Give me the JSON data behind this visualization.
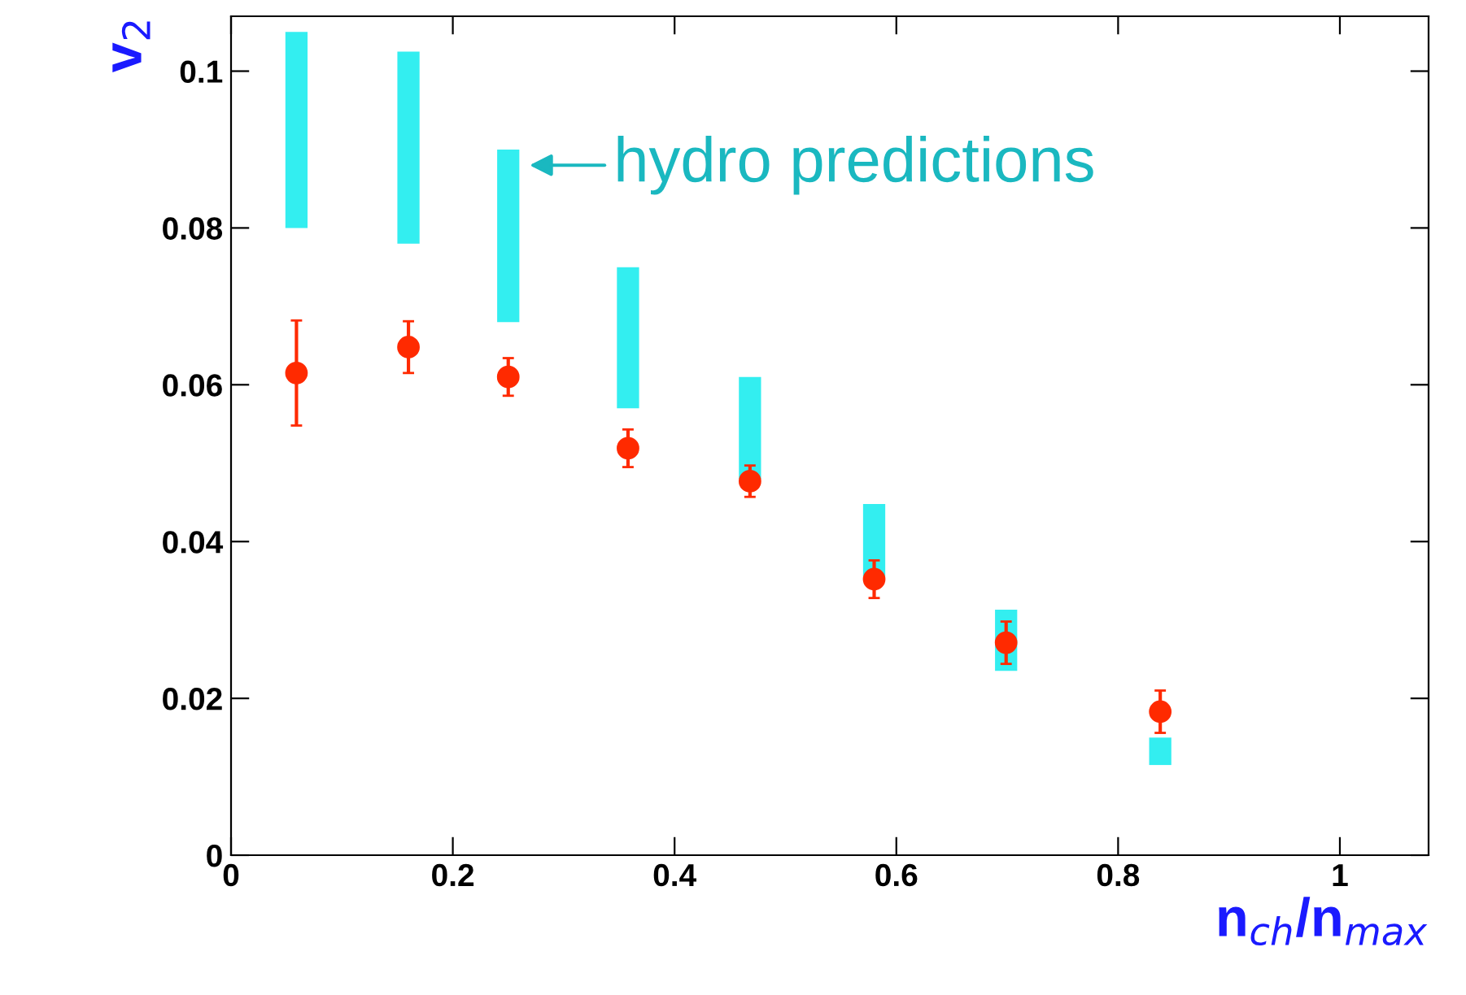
{
  "chart_data": {
    "type": "scatter",
    "xlabel": "n$_{ch}$/n$_{max}$",
    "ylabel": "v$_{2}$",
    "xlim": [
      0,
      1.08
    ],
    "ylim": [
      0,
      0.107
    ],
    "xticks": [
      0,
      0.2,
      0.4,
      0.6,
      0.8,
      1
    ],
    "yticks": [
      0,
      0.02,
      0.04,
      0.06,
      0.08,
      0.1
    ],
    "grid": false,
    "legend": false,
    "annotations": [
      {
        "text": "hydro predictions",
        "x": 0.265,
        "y": 0.088
      }
    ],
    "series": [
      {
        "type": "bar",
        "color": "#33eef0",
        "x": [
          0.059,
          0.16,
          0.25,
          0.358,
          0.468,
          0.58,
          0.699,
          0.838
        ],
        "base": [
          0.08,
          0.078,
          0.068,
          0.057,
          0.048,
          0.0355,
          0.0235,
          0.0115
        ],
        "values": [
          0.025,
          0.0245,
          0.022,
          0.018,
          0.013,
          0.0093,
          0.0078,
          0.0035
        ]
      },
      {
        "color": "#ff2a00",
        "marker": "circle",
        "x": [
          0.059,
          0.16,
          0.25,
          0.358,
          0.468,
          0.58,
          0.699,
          0.838
        ],
        "values": [
          0.0615,
          0.0648,
          0.061,
          0.0519,
          0.0477,
          0.0352,
          0.0271,
          0.0183
        ],
        "errors": [
          0.0067,
          0.0033,
          0.0024,
          0.0024,
          0.002,
          0.0024,
          0.0027,
          0.0027
        ]
      }
    ]
  }
}
